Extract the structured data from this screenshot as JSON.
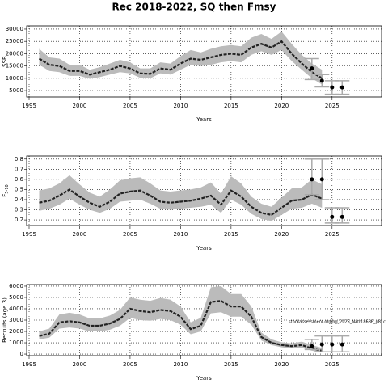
{
  "chart_data": [
    {
      "type": "line",
      "title": "Rec 2018-2022, SQ then Fmsy",
      "xlabel": "Years",
      "ylabel": "SSB",
      "grid": true,
      "color": "#222222",
      "band_color": "#bbbbbb",
      "x": [
        1996,
        1997,
        1998,
        1999,
        2000,
        2001,
        2002,
        2003,
        2004,
        2005,
        2006,
        2007,
        2008,
        2009,
        2010,
        2011,
        2012,
        2013,
        2014,
        2015,
        2016,
        2017,
        2018,
        2019,
        2020,
        2021,
        2022,
        2023,
        2024
      ],
      "values": [
        18000,
        15500,
        15000,
        13000,
        13000,
        11500,
        12500,
        13500,
        15000,
        14000,
        12000,
        11800,
        14000,
        13500,
        16000,
        18000,
        17500,
        18500,
        19500,
        20000,
        19500,
        22500,
        24000,
        22500,
        25000,
        20000,
        16000,
        12500,
        10000
      ],
      "lower": [
        15500,
        13000,
        12500,
        11000,
        11000,
        9800,
        10500,
        11500,
        12500,
        12000,
        10200,
        10000,
        12000,
        11500,
        13500,
        15500,
        15000,
        15500,
        16500,
        17000,
        16500,
        19500,
        21000,
        19500,
        21500,
        17000,
        13500,
        10000,
        7500
      ],
      "upper": [
        22000,
        18500,
        18000,
        15500,
        15500,
        13500,
        14500,
        16000,
        17500,
        16500,
        14000,
        14000,
        16500,
        16000,
        19000,
        21500,
        20500,
        22000,
        23000,
        23500,
        23000,
        26500,
        28000,
        26000,
        29000,
        24000,
        19500,
        16000,
        13500
      ],
      "points": {
        "x": [
          2023,
          2024,
          2025,
          2026
        ],
        "values": [
          14000,
          9000,
          6300,
          6300
        ],
        "lower": [
          9500,
          6500,
          3500,
          3500
        ],
        "upper": [
          18000,
          11500,
          9000,
          9000
        ]
      },
      "xlim": [
        1994.76,
        2029.9
      ],
      "xticks": [
        1995,
        2000,
        2005,
        2010,
        2015,
        2020,
        2025
      ],
      "ylim": [
        2400,
        31300
      ],
      "yticks": [
        5000,
        10000,
        15000,
        20000,
        25000,
        30000
      ]
    },
    {
      "type": "line",
      "xlabel": "Years",
      "ylabel": "F",
      "ylabel_sub": "5-10",
      "grid": true,
      "color": "#222222",
      "band_color": "#bbbbbb",
      "x": [
        1996,
        1997,
        1998,
        1999,
        2000,
        2001,
        2002,
        2003,
        2004,
        2005,
        2006,
        2007,
        2008,
        2009,
        2010,
        2011,
        2012,
        2013,
        2014,
        2015,
        2016,
        2017,
        2018,
        2019,
        2020,
        2021,
        2022,
        2023,
        2024
      ],
      "values": [
        0.37,
        0.39,
        0.44,
        0.5,
        0.43,
        0.37,
        0.33,
        0.38,
        0.46,
        0.48,
        0.49,
        0.44,
        0.38,
        0.37,
        0.38,
        0.39,
        0.41,
        0.44,
        0.35,
        0.49,
        0.43,
        0.33,
        0.27,
        0.25,
        0.32,
        0.39,
        0.4,
        0.45,
        0.41
      ],
      "lower": [
        0.29,
        0.31,
        0.35,
        0.41,
        0.35,
        0.3,
        0.27,
        0.31,
        0.38,
        0.39,
        0.4,
        0.36,
        0.31,
        0.3,
        0.31,
        0.32,
        0.33,
        0.35,
        0.27,
        0.4,
        0.35,
        0.26,
        0.21,
        0.19,
        0.25,
        0.31,
        0.32,
        0.36,
        0.32
      ],
      "upper": [
        0.49,
        0.51,
        0.56,
        0.64,
        0.55,
        0.47,
        0.43,
        0.5,
        0.59,
        0.61,
        0.62,
        0.56,
        0.49,
        0.48,
        0.49,
        0.5,
        0.52,
        0.57,
        0.46,
        0.63,
        0.56,
        0.43,
        0.36,
        0.33,
        0.42,
        0.51,
        0.52,
        0.6,
        0.55
      ],
      "points": {
        "x": [
          2023,
          2024,
          2025,
          2026
        ],
        "values": [
          0.6,
          0.6,
          0.23,
          0.23
        ],
        "lower": [
          0.45,
          0.4,
          0.17,
          0.17
        ],
        "upper": [
          0.8,
          0.8,
          0.32,
          0.32
        ]
      },
      "xlim": [
        1994.76,
        2029.9
      ],
      "xticks": [
        1995,
        2000,
        2005,
        2010,
        2015,
        2020,
        2025
      ],
      "ylim": [
        0.145,
        0.83
      ],
      "yticks": [
        0.2,
        0.3,
        0.4,
        0.5,
        0.6,
        0.7,
        0.8
      ]
    },
    {
      "type": "line",
      "xlabel": "Years",
      "ylabel": "Recruits (age 3)",
      "grid": true,
      "color": "#222222",
      "band_color": "#bbbbbb",
      "annotation": "stockassessment.org/hg_2025_Natr18686_g81c",
      "x": [
        1996,
        1997,
        1998,
        1999,
        2000,
        2001,
        2002,
        2003,
        2004,
        2005,
        2006,
        2007,
        2008,
        2009,
        2010,
        2011,
        2012,
        2013,
        2014,
        2015,
        2016,
        2017,
        2018,
        2019,
        2020,
        2021,
        2022,
        2023,
        2024
      ],
      "values": [
        1600,
        1800,
        2800,
        2900,
        2800,
        2500,
        2500,
        2700,
        3100,
        4000,
        3800,
        3700,
        3900,
        3800,
        3300,
        2200,
        2500,
        4600,
        4700,
        4200,
        4200,
        3300,
        1500,
        1000,
        800,
        700,
        800,
        500,
        300
      ],
      "lower": [
        1300,
        1450,
        2250,
        2350,
        2250,
        2000,
        2000,
        2150,
        2500,
        3200,
        3000,
        2950,
        3100,
        3000,
        2600,
        1750,
        2000,
        3600,
        3700,
        3300,
        3300,
        2600,
        1200,
        800,
        600,
        500,
        550,
        300,
        150
      ],
      "upper": [
        2000,
        2250,
        3500,
        3650,
        3500,
        3150,
        3150,
        3400,
        3900,
        5000,
        4800,
        4700,
        4950,
        4800,
        4200,
        2800,
        3200,
        5900,
        6000,
        5300,
        5300,
        4200,
        1900,
        1300,
        1050,
        950,
        1100,
        800,
        550
      ],
      "points": {
        "x": [
          2023,
          2024,
          2025,
          2026
        ],
        "values": [
          700,
          850,
          850,
          850
        ],
        "lower": [
          400,
          200,
          200,
          200
        ],
        "upper": [
          1300,
          1600,
          1600,
          1600
        ]
      },
      "xlim": [
        1994.76,
        2029.9
      ],
      "xticks": [
        1995,
        2000,
        2005,
        2010,
        2015,
        2020,
        2025
      ],
      "ylim": [
        -140,
        6140
      ],
      "yticks": [
        0,
        1000,
        2000,
        3000,
        4000,
        5000,
        6000
      ]
    }
  ]
}
